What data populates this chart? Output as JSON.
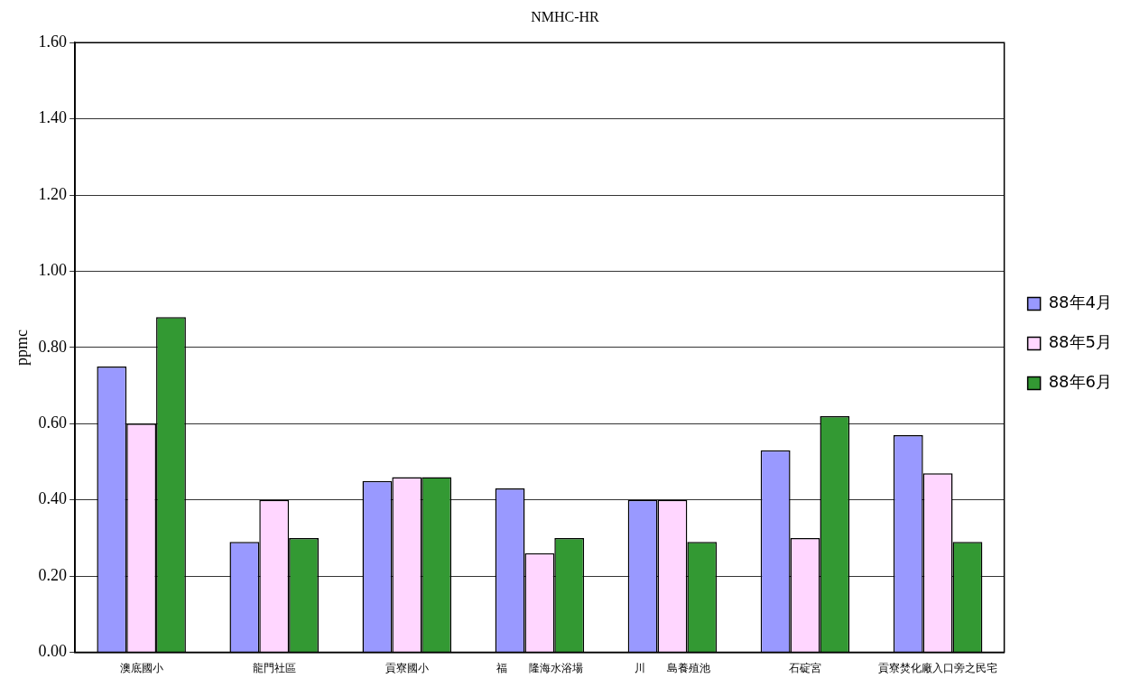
{
  "chart_data": {
    "type": "bar",
    "title": "NMHC-HR",
    "ylabel": "ppmc",
    "categories": [
      "澳底國小",
      "龍門社區",
      "貢寮國小",
      "福　　隆海水浴場",
      "川　　島養殖池",
      "石碇宮",
      "貢寮焚化廠入口旁之民宅"
    ],
    "series": [
      {
        "name": "88年4月",
        "color": "#9999ff",
        "values": [
          0.75,
          0.29,
          0.45,
          0.43,
          0.4,
          0.53,
          0.57
        ]
      },
      {
        "name": "88年5月",
        "color": "#ffd6ff",
        "values": [
          0.6,
          0.4,
          0.46,
          0.26,
          0.4,
          0.3,
          0.47
        ]
      },
      {
        "name": "88年6月",
        "color": "#339933",
        "values": [
          0.88,
          0.3,
          0.46,
          0.3,
          0.29,
          0.62,
          0.29
        ]
      }
    ],
    "ylim": [
      0,
      1.6
    ],
    "yticks": [
      {
        "value": 0,
        "label": "0.00"
      },
      {
        "value": 0.2,
        "label": "0.20"
      },
      {
        "value": 0.4,
        "label": "0.40"
      },
      {
        "value": 0.6,
        "label": "0.60"
      },
      {
        "value": 0.8,
        "label": "0.80"
      },
      {
        "value": 1,
        "label": "1.00"
      },
      {
        "value": 1.2,
        "label": "1.20"
      },
      {
        "value": 1.4,
        "label": "1.40"
      },
      {
        "value": 1.6,
        "label": "1.60"
      }
    ],
    "grid": "y",
    "legend": "right"
  }
}
